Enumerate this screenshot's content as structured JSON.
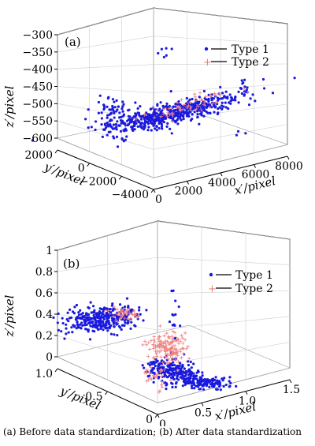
{
  "caption": "(a) Before data standardization; (b) After data standardization",
  "watermark": "",
  "colors": {
    "type1": "#1a1adf",
    "type2": "#f08080",
    "grid": "#cfcfcf",
    "axis": "#000000"
  },
  "chart_data": [
    {
      "type": "scatter3d",
      "panel_label": "(a)",
      "xlabel": "x′/pixel",
      "ylabel": "y′/pixel",
      "zlabel": "z′/pixel",
      "xticks": [
        "0",
        "2000",
        "4000",
        "6000",
        "8000"
      ],
      "yticks": [
        "2000",
        "0",
        "−2000",
        "−4000"
      ],
      "zticks": [
        "−300",
        "−350",
        "−400",
        "−450",
        "−500",
        "−550",
        "−600"
      ],
      "xlim": [
        0,
        8000
      ],
      "ylim": [
        -4000,
        2000
      ],
      "zlim": [
        -600,
        -300
      ],
      "legend": [
        "Type 1",
        "Type 2"
      ],
      "legend_position": "top-right",
      "grid": true
    },
    {
      "type": "scatter3d",
      "panel_label": "(b)",
      "xlabel": "x′/pixel",
      "ylabel": "y′/pixel",
      "zlabel": "z′/pixel",
      "xticks": [
        "0",
        "0.5",
        "1.0",
        "1.5"
      ],
      "yticks": [
        "1.0",
        "0.5",
        "0"
      ],
      "zticks": [
        "1",
        "0.8",
        "0.6",
        "0.4",
        "0.2",
        "0"
      ],
      "xlim": [
        0,
        1.5
      ],
      "ylim": [
        0,
        1.0
      ],
      "zlim": [
        0,
        1
      ],
      "legend": [
        "Type 1",
        "Type 2"
      ],
      "legend_position": "top-right",
      "grid": true
    }
  ]
}
